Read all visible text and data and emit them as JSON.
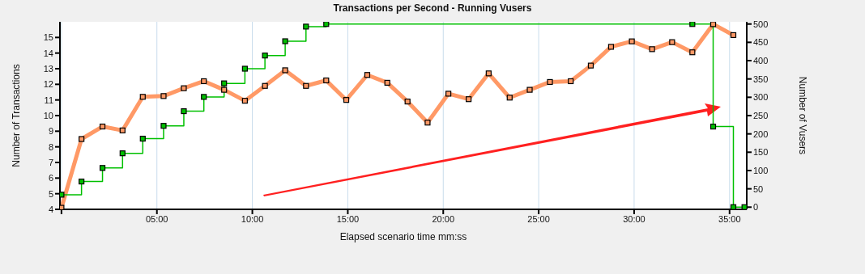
{
  "chart_data": {
    "type": "line",
    "title": "Transactions per Second - Running Vusers",
    "xlabel": "Elapsed scenario time mm:ss",
    "ylabel": "Number of Transactions",
    "y2label": "Number of Vusers",
    "xlim": [
      -0.08,
      35.9
    ],
    "xticks": [
      {
        "value": 0,
        "label": null
      },
      {
        "value": 5,
        "label": "05:00"
      },
      {
        "value": 10,
        "label": "10:00"
      },
      {
        "value": 15,
        "label": "15:00"
      },
      {
        "value": 20,
        "label": "20:00"
      },
      {
        "value": 25,
        "label": "25:00"
      },
      {
        "value": 30,
        "label": "30:00"
      },
      {
        "value": 35,
        "label": "35:00"
      }
    ],
    "ylim": [
      4,
      16
    ],
    "yticks": [
      4,
      5,
      6,
      7,
      8,
      9,
      10,
      11,
      12,
      13,
      14,
      15
    ],
    "y2lim": [
      -6,
      506
    ],
    "y2ticks": [
      0,
      50,
      100,
      150,
      200,
      250,
      300,
      350,
      400,
      450,
      500
    ],
    "grid": "x",
    "legend": false,
    "marker": "square",
    "line_style": "solid",
    "series": [
      {
        "color": "#ff9966",
        "x": [
          0,
          1.05,
          2.15,
          3.2,
          4.26,
          5.35,
          6.41,
          7.46,
          8.52,
          9.61,
          10.66,
          11.72,
          12.81,
          13.87,
          14.92,
          16.02,
          17.07,
          18.13,
          19.18,
          20.27,
          21.33,
          22.38,
          23.48,
          24.53,
          25.59,
          26.68,
          27.73,
          28.79,
          29.88,
          30.94,
          31.99,
          33.05,
          34.14,
          35.2
        ],
        "values": [
          4.1,
          8.5,
          9.3,
          9.05,
          11.2,
          11.25,
          11.75,
          12.2,
          11.65,
          10.95,
          11.9,
          12.9,
          11.9,
          12.25,
          11.0,
          12.6,
          12.1,
          10.9,
          9.55,
          11.4,
          11.05,
          12.7,
          11.15,
          11.65,
          12.15,
          12.2,
          13.2,
          14.4,
          14.75,
          14.25,
          14.7,
          14.05,
          15.85,
          15.15
        ]
      },
      {
        "type": "step",
        "axis": "y2",
        "color": "#00c000",
        "x": [
          0,
          1.05,
          2.15,
          3.2,
          4.26,
          5.35,
          6.41,
          7.46,
          8.52,
          9.61,
          10.66,
          11.72,
          12.81,
          13.87,
          33.05,
          34.14,
          35.2,
          35.78
        ],
        "values": [
          34,
          70,
          107,
          147,
          187,
          222,
          262,
          301,
          338,
          378,
          414,
          453,
          493,
          500,
          500,
          220,
          0,
          0
        ]
      }
    ]
  }
}
